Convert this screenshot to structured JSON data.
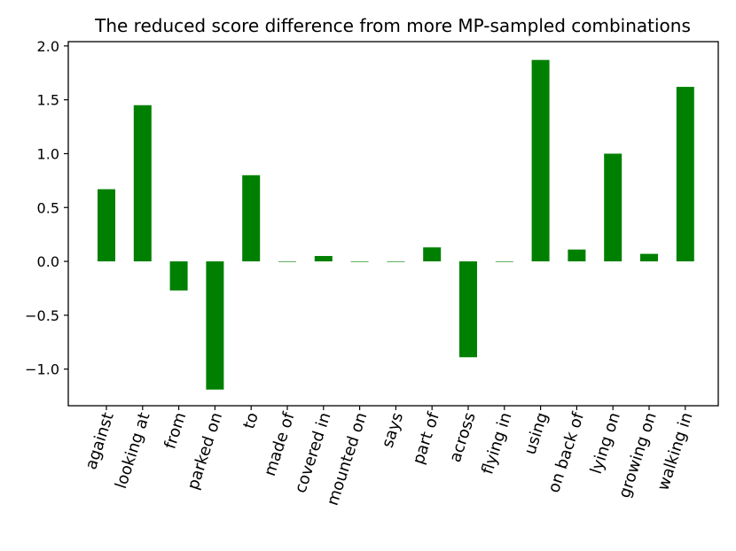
{
  "chart_data": {
    "type": "bar",
    "title": "The reduced score difference from more MP-sampled combinations",
    "xlabel": "",
    "ylabel": "",
    "categories": [
      "against",
      "looking at",
      "from",
      "parked on",
      "to",
      "made of",
      "covered in",
      "mounted on",
      "says",
      "part of",
      "across",
      "flying in",
      "using",
      "on back of",
      "lying on",
      "growing on",
      "walking in"
    ],
    "values": [
      0.67,
      1.45,
      -0.27,
      -1.19,
      0.8,
      0.0,
      0.05,
      -0.005,
      -0.005,
      0.13,
      -0.89,
      0.0,
      1.87,
      0.11,
      1.0,
      0.07,
      1.62
    ],
    "ylim": [
      -1.34,
      2.04
    ],
    "yticks": [
      -1.0,
      -0.5,
      0.0,
      0.5,
      1.0,
      1.5,
      2.0
    ],
    "ytick_labels": [
      "−1.0",
      "−0.5",
      "0.0",
      "0.5",
      "1.0",
      "1.5",
      "2.0"
    ],
    "grid": false,
    "bar_color": "#008000"
  }
}
